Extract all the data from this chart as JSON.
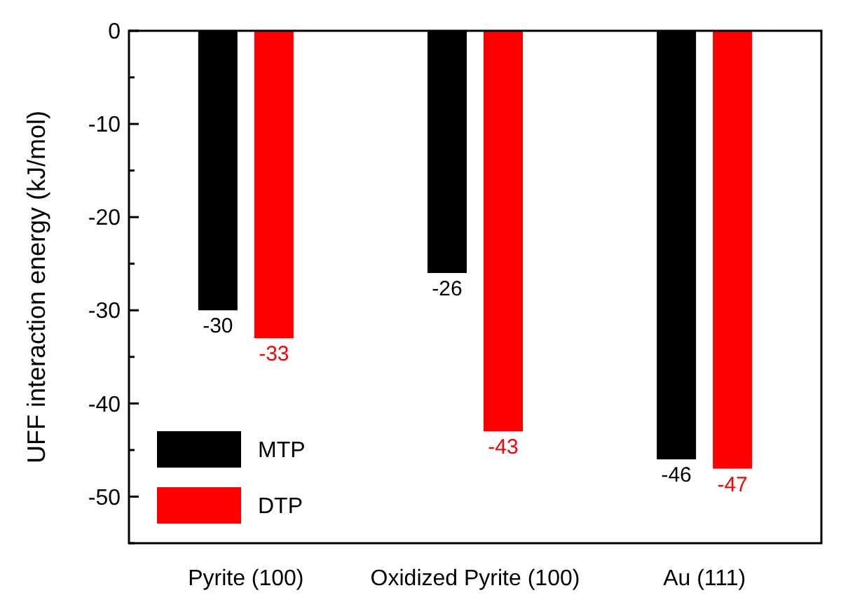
{
  "chart_data": {
    "type": "bar",
    "ylabel": "UFF interaction energy (kJ/mol)",
    "categories": [
      "Pyrite (100)",
      "Oxidized Pyrite (100)",
      "Au (111)"
    ],
    "series": [
      {
        "name": "MTP",
        "color": "#000000",
        "values": [
          -30,
          -26,
          -46
        ]
      },
      {
        "name": "DTP",
        "color": "#ff0000",
        "values": [
          -33,
          -43,
          -47
        ]
      }
    ],
    "ylim": [
      -55,
      0
    ],
    "yticks": [
      0,
      {
        "value": -5,
        "label": null
      },
      -10,
      {
        "value": -15,
        "label": null
      },
      -20,
      {
        "value": -25,
        "label": null
      },
      -30,
      {
        "value": -35,
        "label": null
      },
      -40,
      {
        "value": -45,
        "label": null
      },
      -50,
      {
        "value": -55,
        "label": null
      }
    ],
    "data_labels": true,
    "legend": "bottom left",
    "grid": false
  }
}
